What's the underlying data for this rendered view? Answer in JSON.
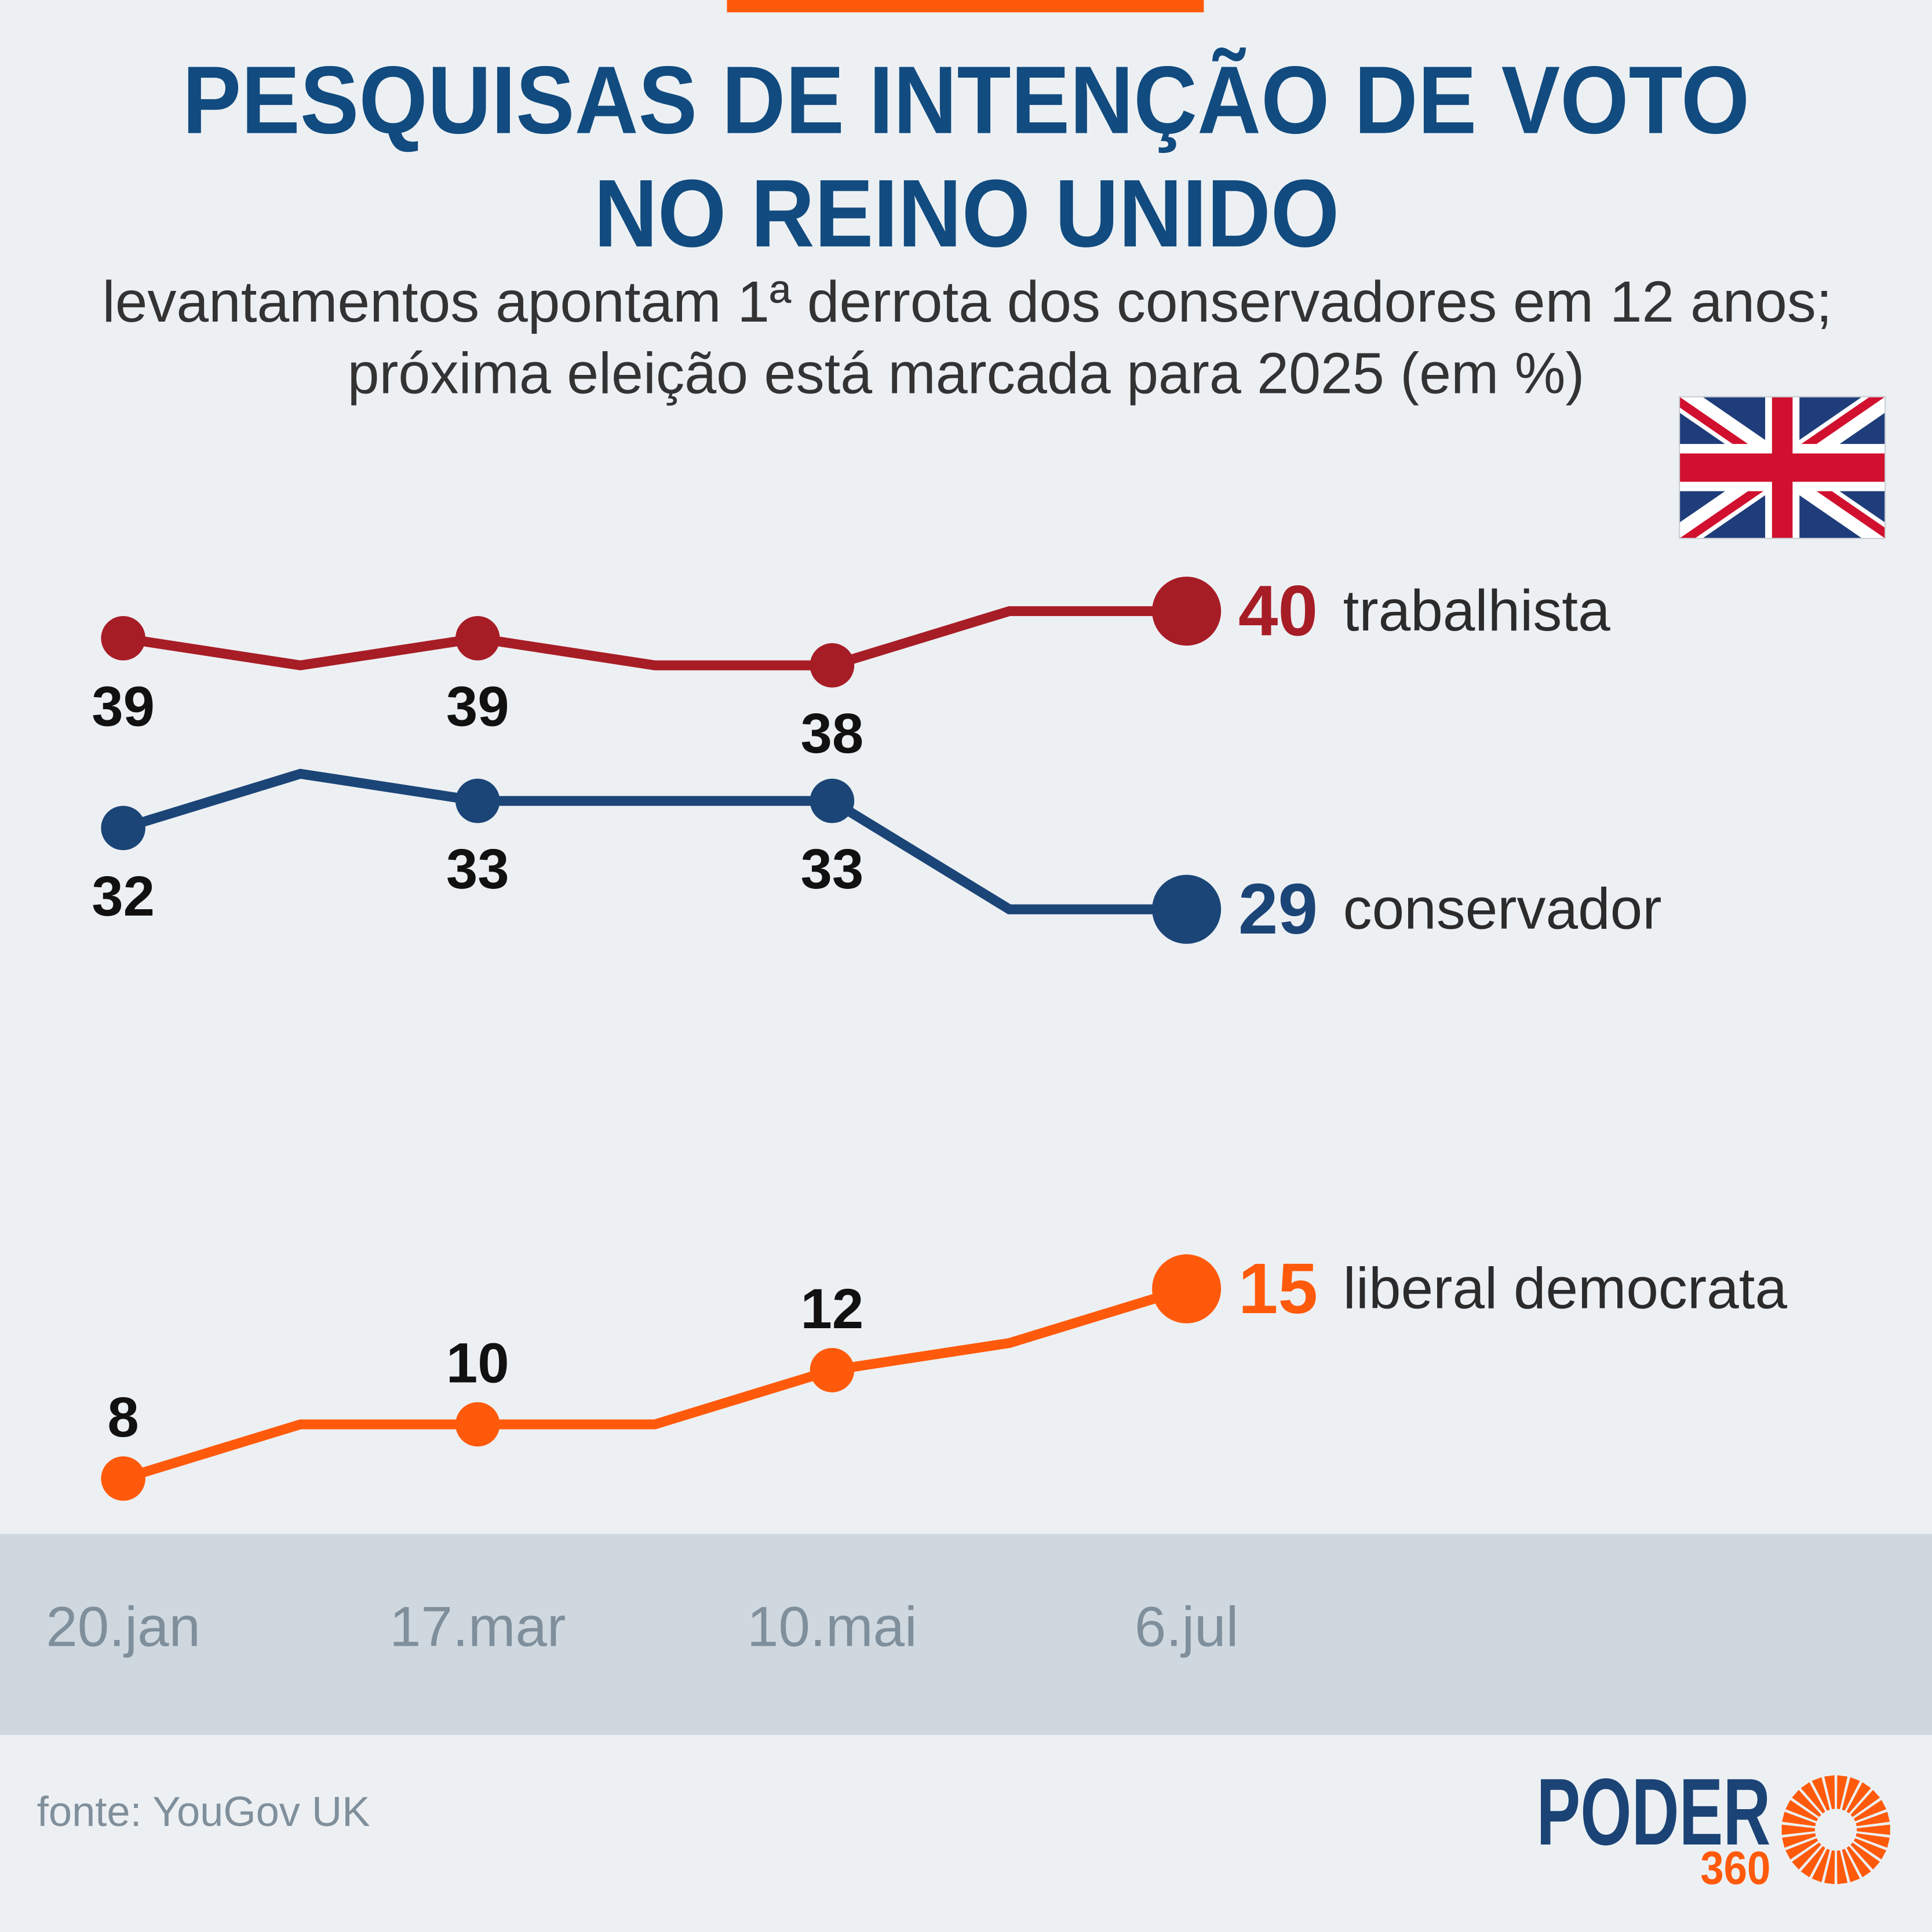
{
  "colors": {
    "background": "#edf0f3",
    "accent": "#ff5a0b",
    "title": "#114b7f",
    "text": "#333333",
    "end_name": "#2b2b2b",
    "axis_band": "#cfd8df",
    "axis_text": "#7f8f9b",
    "data_label": "#111111",
    "brand_blue": "#1b4375"
  },
  "chart_data": {
    "type": "line",
    "title_lines": [
      "PESQUISAS DE INTENÇÃO DE VOTO",
      "NO REINO UNIDO"
    ],
    "subtitle_lines": [
      "levantamentos apontam 1ª derrota dos conservadores em 12 anos;",
      "próxima eleição está marcada para 2025 (em %)"
    ],
    "x": [
      "20.jan",
      "",
      "17.mar",
      "",
      "10.mai",
      "",
      "6.jul"
    ],
    "series": [
      {
        "name": "trabalhista",
        "color": "#a71d26",
        "values": [
          39,
          38,
          39,
          38,
          38,
          40,
          40
        ]
      },
      {
        "name": "conservador",
        "color": "#1b4577",
        "values": [
          32,
          34,
          33,
          33,
          33,
          29,
          29
        ]
      },
      {
        "name": "liberal democrata",
        "color": "#ff5a0b",
        "values": [
          8,
          10,
          10,
          10,
          12,
          13,
          15
        ]
      }
    ],
    "grid": false,
    "source": "fonte: YouGov UK"
  },
  "flag": {
    "icon": "uk-flag-icon"
  },
  "brand": {
    "name": "PODER",
    "number": "360",
    "icon": "sun-burst-icon"
  }
}
